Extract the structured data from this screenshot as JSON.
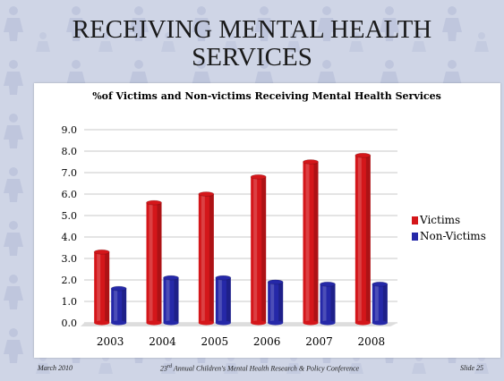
{
  "slide": {
    "title": "RECEIVING MENTAL HEALTH SERVICES",
    "footer_date": "March 2010",
    "footer_conference_ordinal": "23",
    "footer_conference_suffix": "rd",
    "footer_conference_rest": " Annual Children's Mental Health Research & Policy Conference",
    "footer_slide": "Slide 25"
  },
  "colors": {
    "victims": "#d4161a",
    "non_victims": "#2528a8",
    "background": "#cfd5e6"
  },
  "chart_data": {
    "type": "bar",
    "title": "%of Victims and Non-victims Receiving Mental Health Services",
    "categories": [
      "2003",
      "2004",
      "2005",
      "2006",
      "2007",
      "2008"
    ],
    "series": [
      {
        "name": "Victims",
        "values": [
          3.3,
          5.6,
          6.0,
          6.8,
          7.5,
          7.8
        ]
      },
      {
        "name": "Non-Victims",
        "values": [
          1.6,
          2.1,
          2.1,
          1.9,
          1.8,
          1.8
        ]
      }
    ],
    "ylim": [
      0,
      9
    ],
    "yticks": [
      "0.0",
      "1.0",
      "2.0",
      "3.0",
      "4.0",
      "5.0",
      "6.0",
      "7.0",
      "8.0",
      "9.0"
    ],
    "grid": true,
    "legend_position": "right",
    "style": "3d-cylinder"
  }
}
